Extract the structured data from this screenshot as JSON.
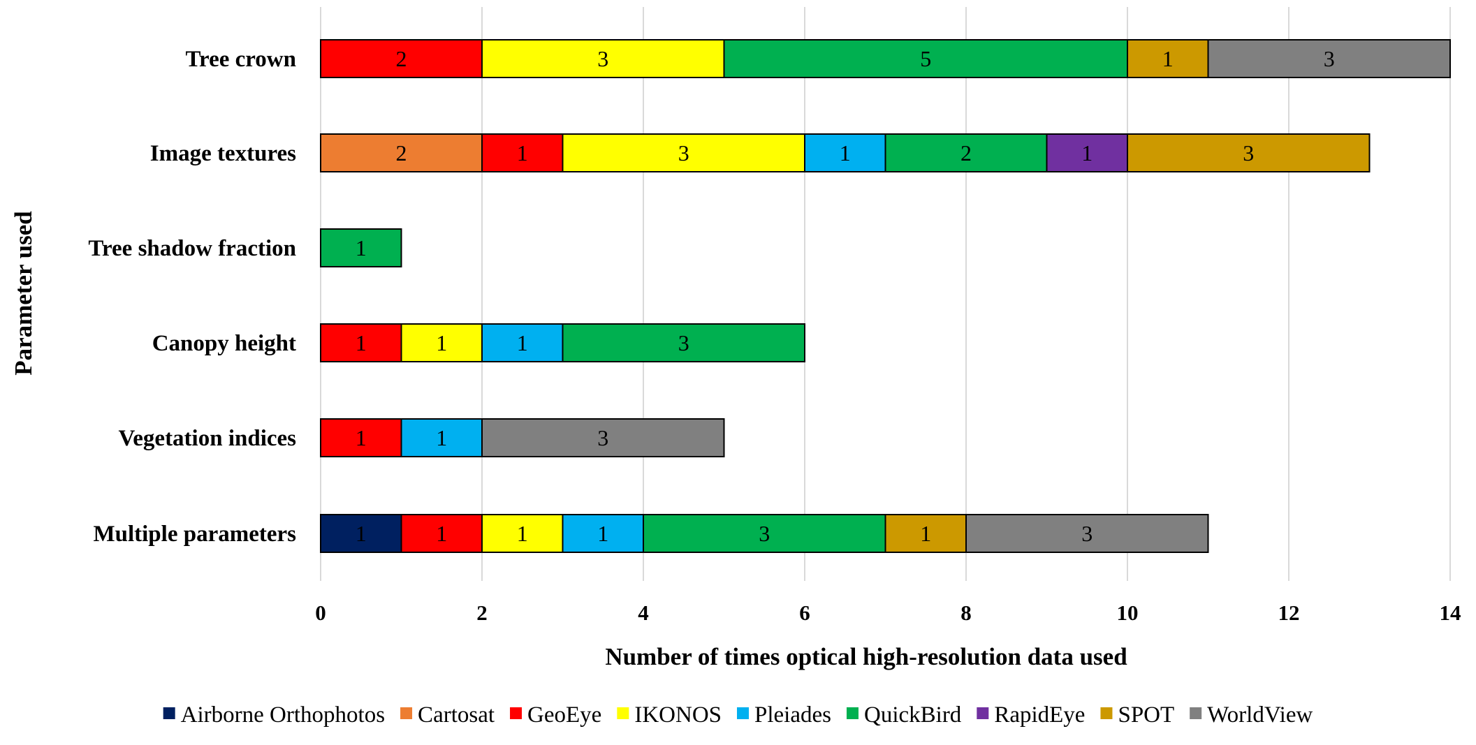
{
  "chart_data": {
    "type": "bar",
    "orientation": "horizontal",
    "stacked": true,
    "title": "",
    "xlabel": "Number of times optical high-resolution data used",
    "ylabel": "Parameter used",
    "xlim": [
      0,
      14
    ],
    "xticks": [
      0,
      2,
      4,
      6,
      8,
      10,
      12,
      14
    ],
    "grid": true,
    "legend_position": "bottom",
    "categories": [
      "Tree crown",
      "Image textures",
      "Tree shadow fraction",
      "Canopy height",
      "Vegetation indices",
      "Multiple parameters"
    ],
    "series": [
      {
        "name": "Airborne Orthophotos",
        "color": "#002060",
        "values": [
          0,
          0,
          0,
          0,
          0,
          1
        ]
      },
      {
        "name": "Cartosat",
        "color": "#ED7D31",
        "values": [
          0,
          2,
          0,
          0,
          0,
          0
        ]
      },
      {
        "name": "GeoEye",
        "color": "#FF0000",
        "values": [
          2,
          1,
          0,
          1,
          1,
          1
        ]
      },
      {
        "name": "IKONOS",
        "color": "#FFFF00",
        "values": [
          3,
          3,
          0,
          1,
          0,
          1
        ]
      },
      {
        "name": "Pleiades",
        "color": "#00B0F0",
        "values": [
          0,
          1,
          0,
          1,
          1,
          1
        ]
      },
      {
        "name": "QuickBird",
        "color": "#00B050",
        "values": [
          5,
          2,
          1,
          3,
          0,
          3
        ]
      },
      {
        "name": "RapidEye",
        "color": "#7030A0",
        "values": [
          0,
          1,
          0,
          0,
          0,
          0
        ]
      },
      {
        "name": "SPOT",
        "color": "#CC9900",
        "values": [
          1,
          3,
          0,
          0,
          0,
          1
        ]
      },
      {
        "name": "WorldView",
        "color": "#808080",
        "values": [
          3,
          0,
          0,
          0,
          3,
          3
        ]
      }
    ]
  }
}
